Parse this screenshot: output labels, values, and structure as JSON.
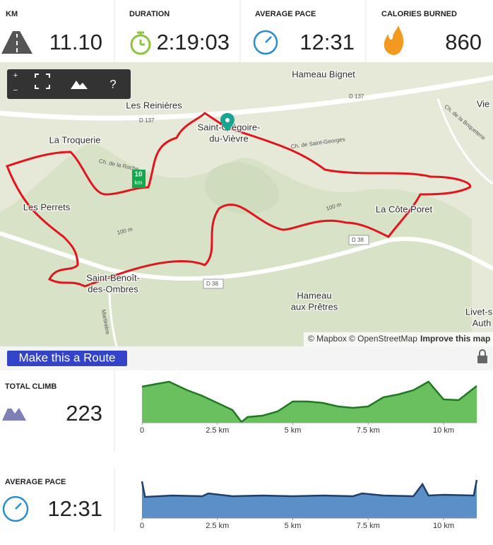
{
  "stats": [
    {
      "label": "KM",
      "value": "11.10"
    },
    {
      "label": "DURATION",
      "value": "2:19:03"
    },
    {
      "label": "AVERAGE PACE",
      "value": "12:31"
    },
    {
      "label": "CALORIES BURNED",
      "value": "860"
    }
  ],
  "map": {
    "controls": {
      "zoom_in": "+",
      "zoom_out": "−",
      "help": "?"
    },
    "places": [
      "Hameau Bignet",
      "Les Reinières",
      "Saint-Grégoire-",
      "du-Vièvre",
      "La Troquerie",
      "Les Perrets",
      "La Côte Poret",
      "Saint-Benoît-",
      "des-Ombres",
      "Hameau",
      "aux Prêtres",
      "Vie",
      "Livet-s",
      "Auth"
    ],
    "roads": [
      "D 137",
      "D 137",
      "Ch. de la Roche",
      "Ch. de Saint-Georges",
      "Ch. de la Briqueterie",
      "100 m",
      "100 m",
      "D 38",
      "D 38",
      "Martinière"
    ],
    "marker": "10",
    "marker_unit": "km",
    "attribution": {
      "mapbox": "© Mapbox",
      "osm": "© OpenStreetMap",
      "improve": "Improve this map"
    }
  },
  "route_button": "Make this a Route",
  "charts": [
    {
      "type": "area",
      "label": "TOTAL CLIMB",
      "value": "223",
      "color": "#6abf5e",
      "line": "#1f7a1f",
      "x": [
        0,
        0.5,
        0.9,
        1.5,
        2,
        2.5,
        3,
        3.3,
        3.5,
        4,
        4.5,
        5,
        5.5,
        6,
        6.5,
        7,
        7.5,
        8,
        8.5,
        9,
        9.5,
        10,
        10.5,
        11.1
      ],
      "values": [
        51,
        55,
        58,
        46,
        38,
        28,
        18,
        1,
        8,
        10,
        16,
        30,
        30,
        28,
        23,
        21,
        23,
        36,
        40,
        46,
        58,
        33,
        32,
        52
      ],
      "xlim": [
        0,
        11.1
      ],
      "ylim": [
        0,
        63
      ],
      "xticks": [
        0,
        {
          "value": 2.5,
          "label": "2.5 km"
        },
        {
          "value": 5,
          "label": "5 km"
        },
        {
          "value": 7.5,
          "label": "7.5 km"
        },
        {
          "value": 10,
          "label": "10 km"
        }
      ]
    },
    {
      "type": "area",
      "label": "AVERAGE PACE",
      "value": "12:31",
      "color": "#5b8fc7",
      "line": "#1d3f6e",
      "x": [
        0,
        0.1,
        1,
        2,
        2.2,
        3,
        4,
        5,
        6,
        7,
        7.3,
        8,
        9,
        9.3,
        9.5,
        10,
        11,
        11.1
      ],
      "values": [
        52,
        30,
        32,
        31,
        35,
        31,
        32,
        31,
        32,
        31,
        35,
        32,
        31,
        48,
        32,
        33,
        32,
        54
      ],
      "xlim": [
        0,
        11.1
      ],
      "ylim": [
        0,
        63
      ],
      "xticks": [
        0,
        {
          "value": 2.5,
          "label": "2.5 km"
        },
        {
          "value": 5,
          "label": "5 km"
        },
        {
          "value": 7.5,
          "label": "7.5 km"
        },
        {
          "value": 10,
          "label": "10 km"
        }
      ]
    }
  ]
}
